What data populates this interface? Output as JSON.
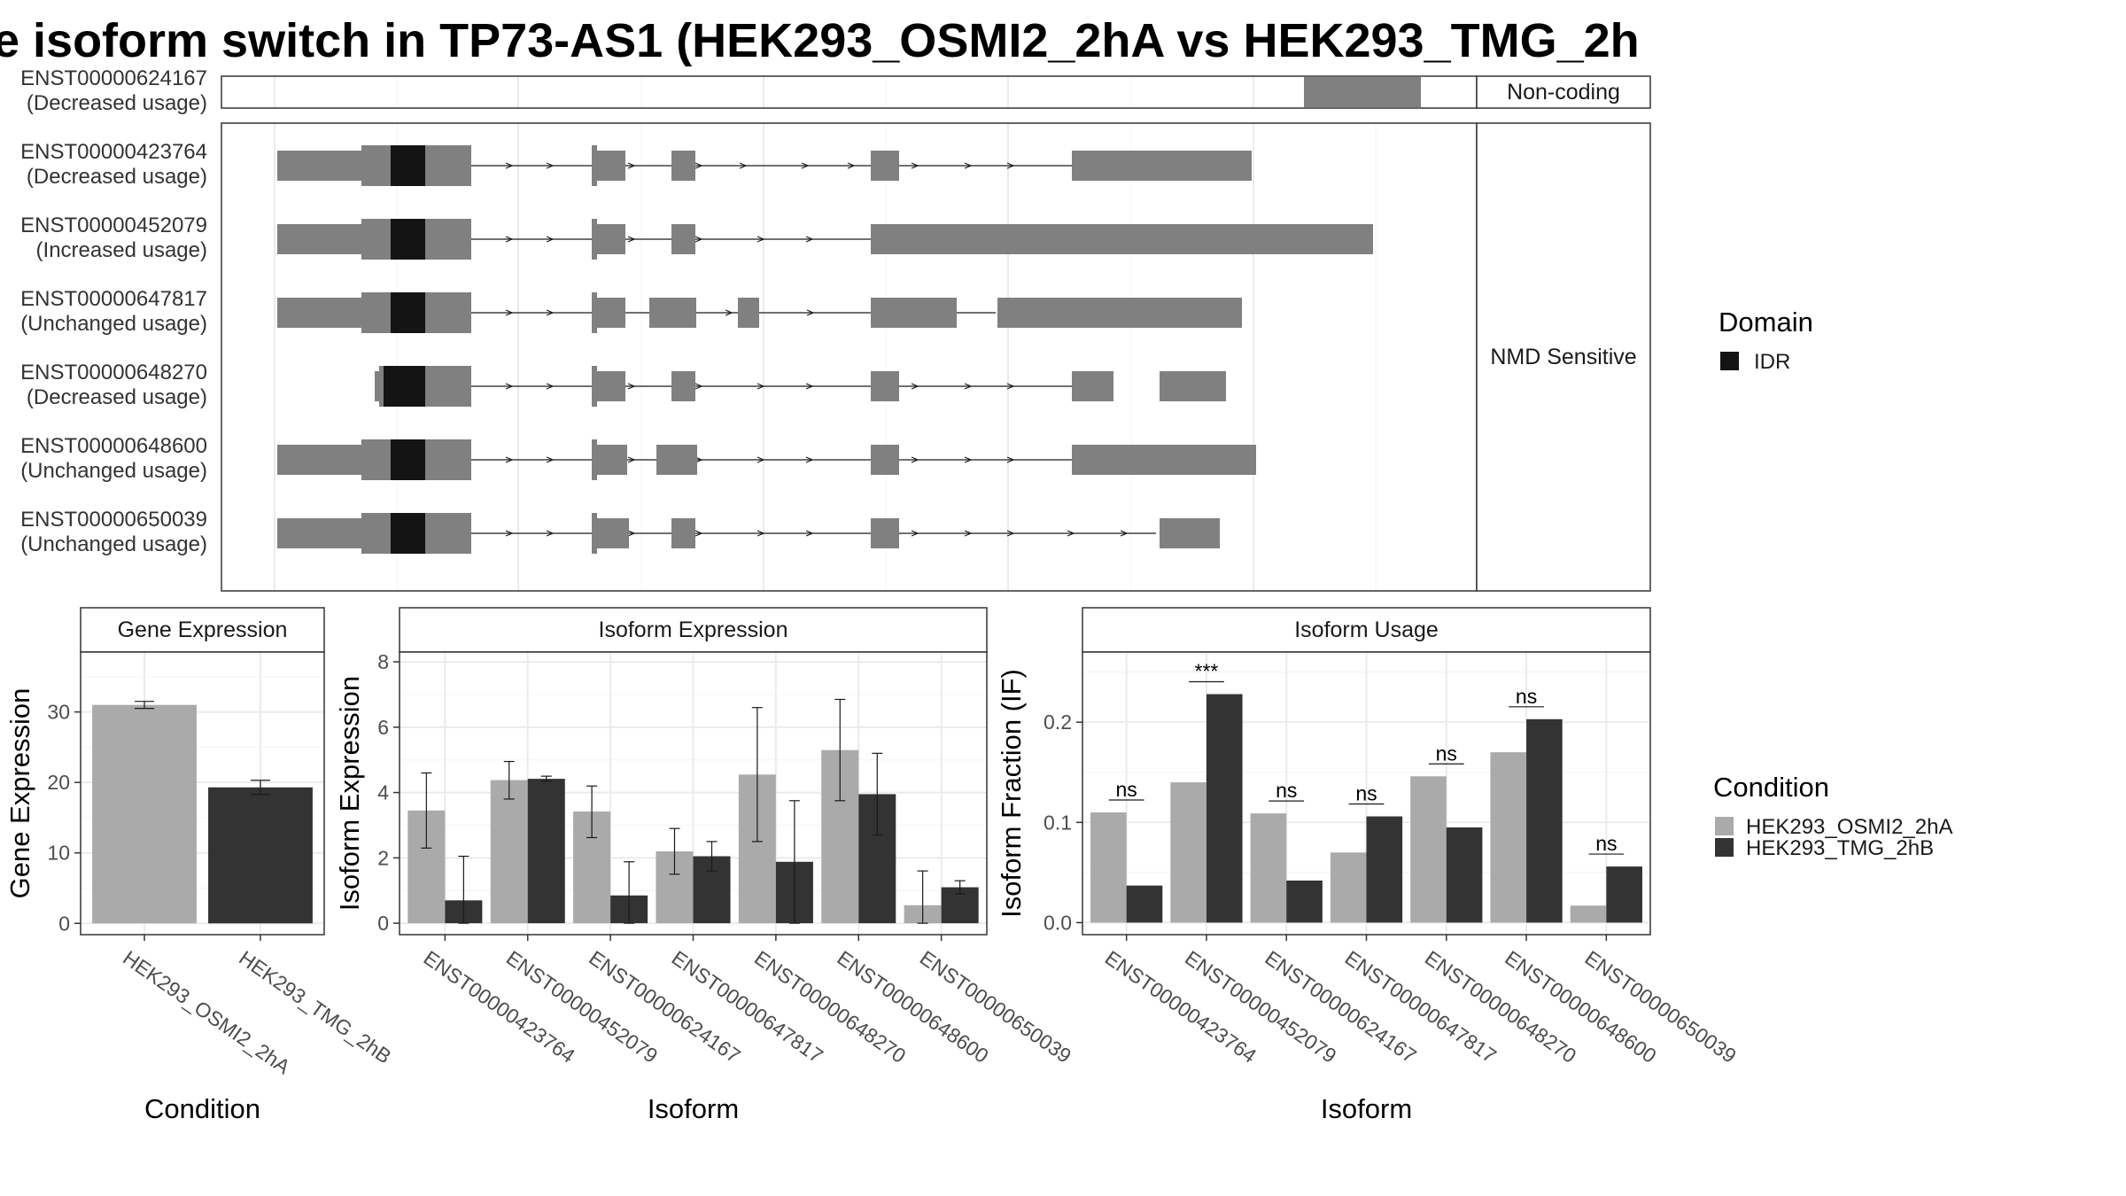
{
  "title": "e isoform switch in TP73-AS1 (HEK293_OSMI2_2hA vs HEK293_TMG_2h",
  "colors": {
    "exon": "#808080",
    "domain_idr": "#141414",
    "condition_a": "#aaaaaa",
    "condition_b": "#333333",
    "grid": "#ebebeb",
    "border": "#333333"
  },
  "transcript_panel": {
    "groups": [
      {
        "label": "Non-coding",
        "transcripts": [
          {
            "id": "ENST00000624167",
            "usage": "(Decreased usage)"
          }
        ]
      },
      {
        "label": "NMD Sensitive",
        "transcripts": [
          {
            "id": "ENST00000423764",
            "usage": "(Decreased usage)"
          },
          {
            "id": "ENST00000452079",
            "usage": "(Increased usage)"
          },
          {
            "id": "ENST00000647817",
            "usage": "(Unchanged usage)"
          },
          {
            "id": "ENST00000648270",
            "usage": "(Decreased usage)"
          },
          {
            "id": "ENST00000648600",
            "usage": "(Unchanged usage)"
          },
          {
            "id": "ENST00000650039",
            "usage": "(Unchanged usage)"
          }
        ]
      }
    ]
  },
  "domain_legend": {
    "title": "Domain",
    "items": [
      {
        "label": "IDR"
      }
    ]
  },
  "condition_legend": {
    "title": "Condition",
    "items": [
      {
        "label": "HEK293_OSMI2_2hA"
      },
      {
        "label": "HEK293_TMG_2hB"
      }
    ]
  },
  "chart_data": [
    {
      "type": "bar",
      "title": "Gene Expression",
      "xlabel": "Condition",
      "ylabel": "Gene Expression",
      "categories": [
        "HEK293_OSMI2_2hA",
        "HEK293_TMG_2hB"
      ],
      "values": [
        31.0,
        19.3
      ],
      "error": [
        [
          30.5,
          31.5
        ],
        [
          18.3,
          20.3
        ]
      ],
      "ylim": [
        -1.6,
        38.5
      ],
      "yticks": [
        0,
        10,
        20,
        30
      ]
    },
    {
      "type": "bar",
      "title": "Isoform Expression",
      "xlabel": "Isoform",
      "ylabel": "Isoform Expression",
      "categories": [
        "ENST00000423764",
        "ENST00000452079",
        "ENST00000624167",
        "ENST00000647817",
        "ENST00000648270",
        "ENST00000648600",
        "ENST00000650039"
      ],
      "series": [
        {
          "name": "HEK293_OSMI2_2hA",
          "values": [
            3.45,
            4.38,
            3.42,
            2.2,
            4.55,
            5.3,
            0.55
          ],
          "error_low": [
            2.3,
            3.8,
            2.62,
            1.5,
            2.5,
            3.75,
            0.0
          ],
          "error_high": [
            4.6,
            4.95,
            4.2,
            2.9,
            6.6,
            6.85,
            1.6
          ]
        },
        {
          "name": "HEK293_TMG_2hB",
          "values": [
            0.7,
            4.42,
            0.85,
            2.05,
            1.88,
            3.95,
            1.1
          ],
          "error_low": [
            0.0,
            4.35,
            0.0,
            1.6,
            0.0,
            2.7,
            0.9
          ],
          "error_high": [
            2.05,
            4.5,
            1.88,
            2.5,
            3.75,
            5.2,
            1.3
          ]
        }
      ],
      "ylim": [
        -0.35,
        8.3
      ],
      "yticks": [
        0,
        2,
        4,
        6,
        8
      ]
    },
    {
      "type": "bar",
      "title": "Isoform Usage",
      "xlabel": "Isoform",
      "ylabel": "Isoform Fraction (IF)",
      "categories": [
        "ENST00000423764",
        "ENST00000452079",
        "ENST00000624167",
        "ENST00000647817",
        "ENST00000648270",
        "ENST00000648600",
        "ENST00000650039"
      ],
      "series": [
        {
          "name": "HEK293_OSMI2_2hA",
          "values": [
            0.11,
            0.14,
            0.109,
            0.07,
            0.146,
            0.17,
            0.017
          ]
        },
        {
          "name": "HEK293_TMG_2hB",
          "values": [
            0.037,
            0.228,
            0.042,
            0.106,
            0.095,
            0.203,
            0.056
          ]
        }
      ],
      "significance": [
        "ns",
        "***",
        "ns",
        "ns",
        "ns",
        "ns",
        "ns"
      ],
      "ylim": [
        -0.012,
        0.27
      ],
      "yticks": [
        0.0,
        0.1,
        0.2
      ],
      "ytick_labels": [
        "0.0",
        "0.1",
        "0.2"
      ]
    }
  ]
}
